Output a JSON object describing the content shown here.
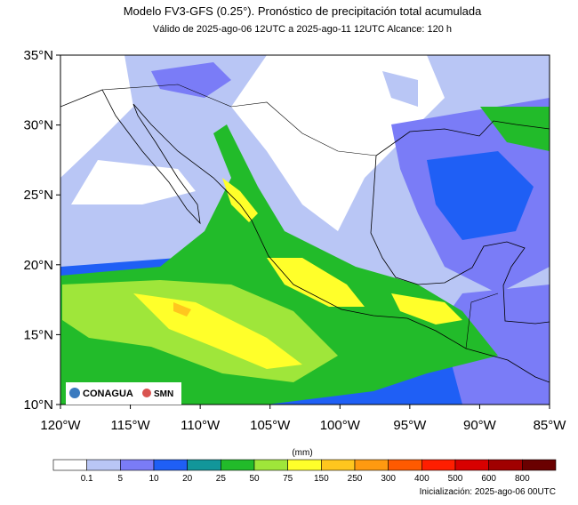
{
  "header": {
    "title": "Modelo FV3-GFS (0.25°). Pronóstico de precipitación total acumulada",
    "subtitle": "Válido de 2025-ago-06 12UTC a 2025-ago-11 12UTC    Alcance: 120 h"
  },
  "map": {
    "lat_labels": [
      "35°N",
      "30°N",
      "25°N",
      "20°N",
      "15°N",
      "10°N"
    ],
    "lon_labels": [
      "120°W",
      "115°W",
      "110°W",
      "105°W",
      "100°W",
      "95°W",
      "90°W",
      "85°W"
    ],
    "logos": [
      "CONAGUA",
      "SMN"
    ]
  },
  "colorbar": {
    "unit": "(mm)",
    "labels": [
      0.1,
      5,
      10,
      20,
      25,
      50,
      75,
      150,
      250,
      300,
      400,
      500,
      600,
      800
    ],
    "colors": [
      "#ffffff",
      "#b9c6f5",
      "#7a7cf7",
      "#1f5ff5",
      "#12969a",
      "#22bb2a",
      "#9fe63a",
      "#ffff2a",
      "#ffc61e",
      "#ff9a10",
      "#ff5a00",
      "#ff1e00",
      "#d80000",
      "#a00000",
      "#6a0000"
    ]
  },
  "footer": {
    "init": "Inicialización: 2025-ago-06 00UTC"
  }
}
